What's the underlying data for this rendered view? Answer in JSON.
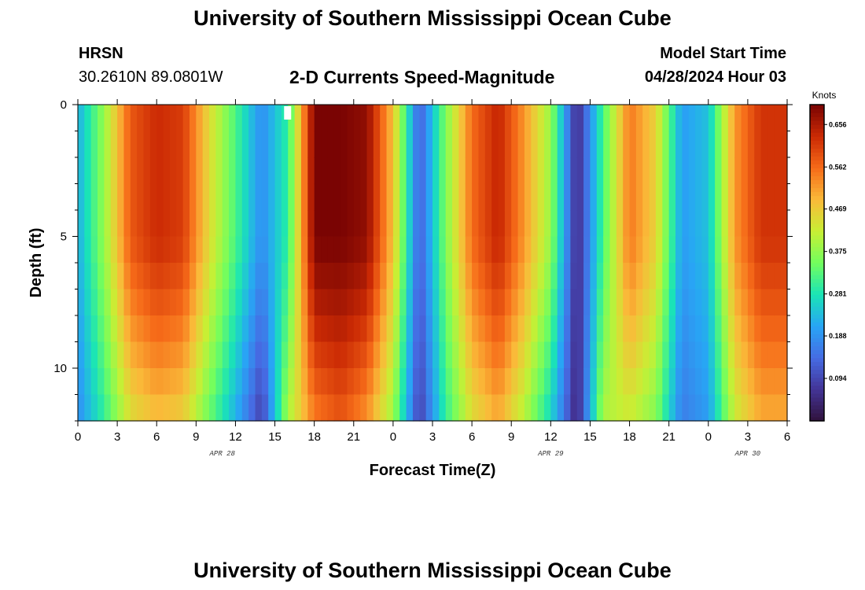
{
  "page": {
    "title_top": "University of Southern Mississippi Ocean Cube",
    "title_bottom": "University of Southern Mississippi Ocean Cube",
    "station": "HRSN",
    "coordinates": "30.2610N  89.0801W",
    "subtitle": "2-D Currents Speed-Magnitude",
    "model_start_label": "Model Start Time",
    "model_start_value": "04/28/2024 Hour 03"
  },
  "chart_data": {
    "type": "heatmap",
    "title": "2-D Currents Speed-Magnitude",
    "xlabel": "Forecast Time(Z)",
    "ylabel": "Depth (ft)",
    "x_ticks": [
      "0",
      "3",
      "6",
      "9",
      "12",
      "15",
      "18",
      "21",
      "0",
      "3",
      "6",
      "9",
      "12",
      "15",
      "18",
      "21",
      "0",
      "3",
      "6"
    ],
    "x_range_hours": [
      0,
      54
    ],
    "date_labels": [
      {
        "label": "APR 28",
        "hour": 11
      },
      {
        "label": "APR 29",
        "hour": 36
      },
      {
        "label": "APR 30",
        "hour": 51
      }
    ],
    "y_ticks": [
      "0",
      "5",
      "10"
    ],
    "y_range_ft": [
      0,
      12
    ],
    "colorbar": {
      "title": "Knots",
      "range": [
        0.0,
        0.7
      ],
      "tick_labels": [
        "0.656",
        "0.562",
        "0.469",
        "0.375",
        "0.281",
        "0.188",
        "0.094"
      ],
      "tick_values": [
        0.656,
        0.562,
        0.469,
        0.375,
        0.281,
        0.188,
        0.094
      ]
    },
    "surface_speed_by_hour": [
      0.22,
      0.38,
      0.58,
      0.63,
      0.61,
      0.45,
      0.32,
      0.18,
      0.3,
      0.7,
      0.7,
      0.68,
      0.48,
      0.12,
      0.36,
      0.56,
      0.64,
      0.52,
      0.38,
      0.05,
      0.32,
      0.55,
      0.46,
      0.2,
      0.24,
      0.52,
      0.62
    ],
    "deep_speed_by_hour": [
      0.18,
      0.3,
      0.44,
      0.48,
      0.46,
      0.34,
      0.22,
      0.08,
      0.4,
      0.54,
      0.58,
      0.52,
      0.38,
      0.08,
      0.3,
      0.44,
      0.5,
      0.4,
      0.26,
      0.04,
      0.4,
      0.42,
      0.36,
      0.16,
      0.2,
      0.42,
      0.5
    ],
    "missing_cell": {
      "hour": 16,
      "depth_ft": 0.25
    }
  }
}
